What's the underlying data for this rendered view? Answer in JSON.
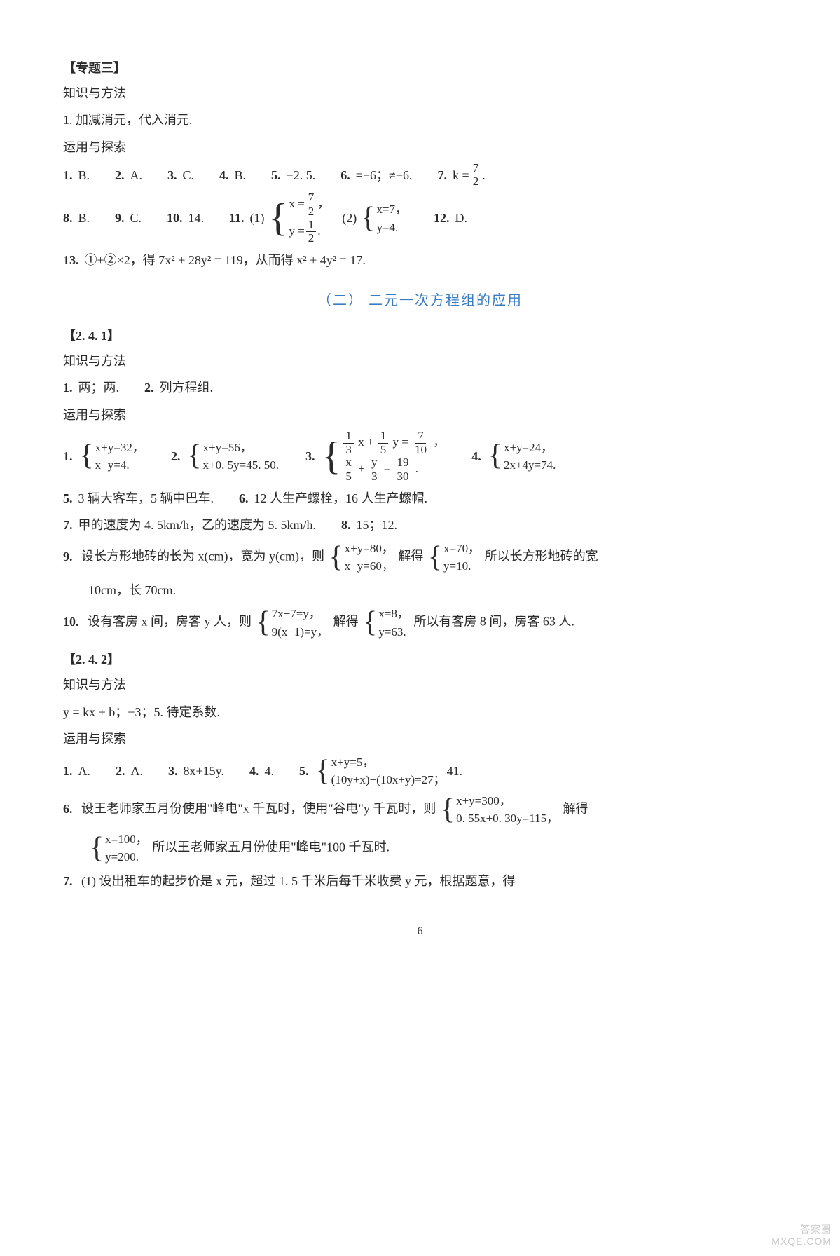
{
  "topic3": {
    "title": "【专题三】",
    "km_label": "知识与方法",
    "km_1": "1.  加减消元，代入消元.",
    "yt_label": "运用与探索",
    "row1": {
      "q1": "1.",
      "a1": "B.",
      "q2": "2.",
      "a2": "A.",
      "q3": "3.",
      "a3": "C.",
      "q4": "4.",
      "a4": "B.",
      "q5": "5.",
      "a5": "−2. 5.",
      "q6": "6.",
      "a6": "=−6；≠−6.",
      "q7": "7.",
      "a7_pre": "k =",
      "a7_num": "7",
      "a7_den": "2",
      "a7_post": "."
    },
    "row2": {
      "q8": "8.",
      "a8": "B.",
      "q9": "9.",
      "a9": "C.",
      "q10": "10.",
      "a10": "14.",
      "q11": "11.",
      "p1_label": "(1)",
      "p1_line1_pre": "x =",
      "p1_line1_num": "7",
      "p1_line1_den": "2",
      "p1_line1_post": "，",
      "p1_line2_pre": "y =",
      "p1_line2_num": "1",
      "p1_line2_den": "2",
      "p1_line2_post": ".",
      "p2_label": "(2)",
      "p2_line1": "x=7，",
      "p2_line2": "y=4.",
      "q12": "12.",
      "a12": "D."
    },
    "row3": {
      "q13": "13.",
      "a13": "①+②×2，得 7x² + 28y² = 119，从而得 x² + 4y² = 17."
    }
  },
  "subtitle": "（二）  二元一次方程组的应用",
  "s241": {
    "title": "【2. 4. 1】",
    "km_label": "知识与方法",
    "km_line": {
      "q1": "1.",
      "a1": "两；两.",
      "q2": "2.",
      "a2": "列方程组."
    },
    "yt_label": "运用与探索",
    "r1": {
      "q1": "1.",
      "b1l1": "x+y=32，",
      "b1l2": "x−y=4.",
      "q2": "2.",
      "b2l1": "x+y=56，",
      "b2l2": "x+0. 5y=45. 50.",
      "q3": "3.",
      "b3l1_f1n": "1",
      "b3l1_f1d": "3",
      "b3l1_mid1": "x +",
      "b3l1_f2n": "1",
      "b3l1_f2d": "5",
      "b3l1_mid2": "y =",
      "b3l1_f3n": "7",
      "b3l1_f3d": "10",
      "b3l1_post": "，",
      "b3l2_f1n": "x",
      "b3l2_f1d": "5",
      "b3l2_mid1": " + ",
      "b3l2_f2n": "y",
      "b3l2_f2d": "3",
      "b3l2_mid2": " = ",
      "b3l2_f3n": "19",
      "b3l2_f3d": "30",
      "b3l2_post": ".",
      "q4": "4.",
      "b4l1": "x+y=24，",
      "b4l2": "2x+4y=74."
    },
    "r2": {
      "q5": "5.",
      "a5": "3 辆大客车，5 辆中巴车.",
      "q6": "6.",
      "a6": "12 人生产螺栓，16 人生产螺帽."
    },
    "r3": {
      "q7": "7.",
      "a7": "甲的速度为 4. 5km/h，乙的速度为 5. 5km/h.",
      "q8": "8.",
      "a8": "15；12."
    },
    "q9": {
      "num": "9.",
      "pre": "设长方形地砖的长为 x(cm)，宽为 y(cm)，则",
      "b1l1": "x+y=80，",
      "b1l2": "x−y=60，",
      "mid": "解得",
      "b2l1": "x=70，",
      "b2l2": "y=10.",
      "post": "所以长方形地砖的宽",
      "line2": "10cm，长 70cm."
    },
    "q10": {
      "num": "10.",
      "pre": "设有客房 x 间，房客 y 人，则",
      "b1l1": "7x+7=y，",
      "b1l2": "9(x−1)=y，",
      "mid": "解得",
      "b2l1": "x=8，",
      "b2l2": "y=63.",
      "post": "所以有客房 8 间，房客 63 人."
    }
  },
  "s242": {
    "title": "【2. 4. 2】",
    "km_label": "知识与方法",
    "km_line": "y = kx + b；−3；5. 待定系数.",
    "yt_label": "运用与探索",
    "r1": {
      "q1": "1.",
      "a1": "A.",
      "q2": "2.",
      "a2": "A.",
      "q3": "3.",
      "a3": "8x+15y.",
      "q4": "4.",
      "a4": "4.",
      "q5": "5.",
      "b5l1": "x+y=5，",
      "b5l2": "(10y+x)−(10x+y)=27；",
      "a5_post": "41."
    },
    "q6": {
      "num": "6.",
      "pre": "设王老师家五月份使用\"峰电\"x 千瓦时，使用\"谷电\"y 千瓦时，则",
      "b1l1": "x+y=300，",
      "b1l2": "0. 55x+0. 30y=115，",
      "mid": "解得",
      "b2l1": "x=100，",
      "b2l2": "y=200.",
      "post": "所以王老师家五月份使用\"峰电\"100 千瓦时."
    },
    "q7": {
      "num": "7.",
      "text": "(1) 设出租车的起步价是 x 元，超过 1. 5 千米后每千米收费 y 元，根据题意，得"
    }
  },
  "pagenum": "6",
  "watermark": {
    "l1": "答案圈",
    "l2": "MXQE.COM"
  }
}
